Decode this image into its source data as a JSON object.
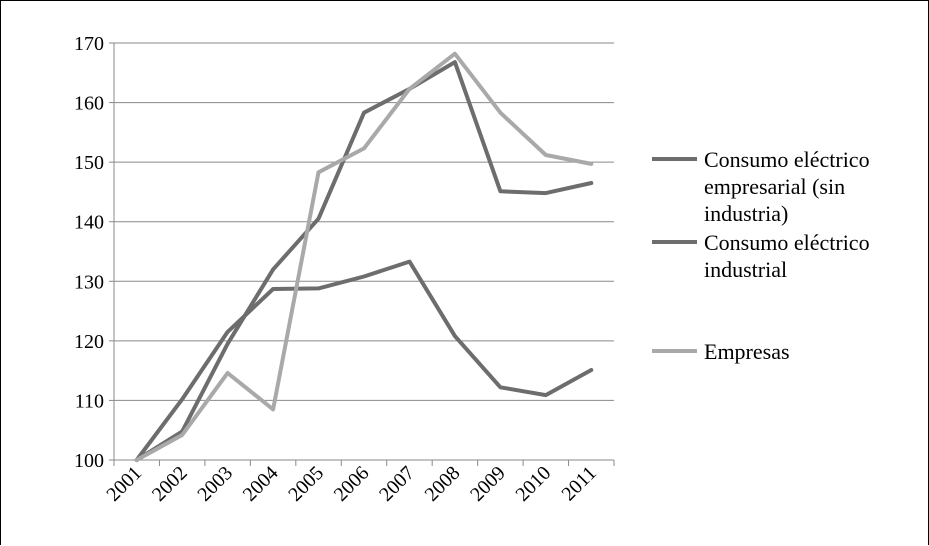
{
  "chart_data": {
    "type": "line",
    "categories": [
      "2001",
      "2002",
      "2003",
      "2004",
      "2005",
      "2006",
      "2007",
      "2008",
      "2009",
      "2010",
      "2011"
    ],
    "ylim": [
      100,
      170
    ],
    "yticks": [
      100,
      110,
      120,
      130,
      140,
      150,
      160,
      170
    ],
    "grid": true,
    "legend_position": "right",
    "series": [
      {
        "name": "Consumo eléctrico empresarial (sin industria)",
        "legend_lines": [
          "Consumo eléctrico",
          "empresarial (sin",
          "industria)"
        ],
        "color": "#6d6d6d",
        "values": [
          100,
          104.8,
          119.5,
          132,
          140.5,
          158.3,
          162.3,
          166.8,
          145.1,
          144.8,
          146.5
        ]
      },
      {
        "name": "Consumo eléctrico industrial",
        "legend_lines": [
          "Consumo eléctrico",
          "industrial"
        ],
        "color": "#6d6d6d",
        "values": [
          100,
          110.2,
          121.5,
          128.7,
          128.8,
          130.8,
          133.3,
          120.8,
          112.2,
          110.9,
          115.1
        ]
      },
      {
        "name": "Empresas",
        "legend_lines": [
          "Empresas"
        ],
        "color": "#a9a9a9",
        "values": [
          100,
          104.2,
          114.6,
          108.5,
          148.3,
          152.3,
          162.3,
          168.2,
          158.3,
          151.2,
          149.7
        ]
      }
    ]
  }
}
